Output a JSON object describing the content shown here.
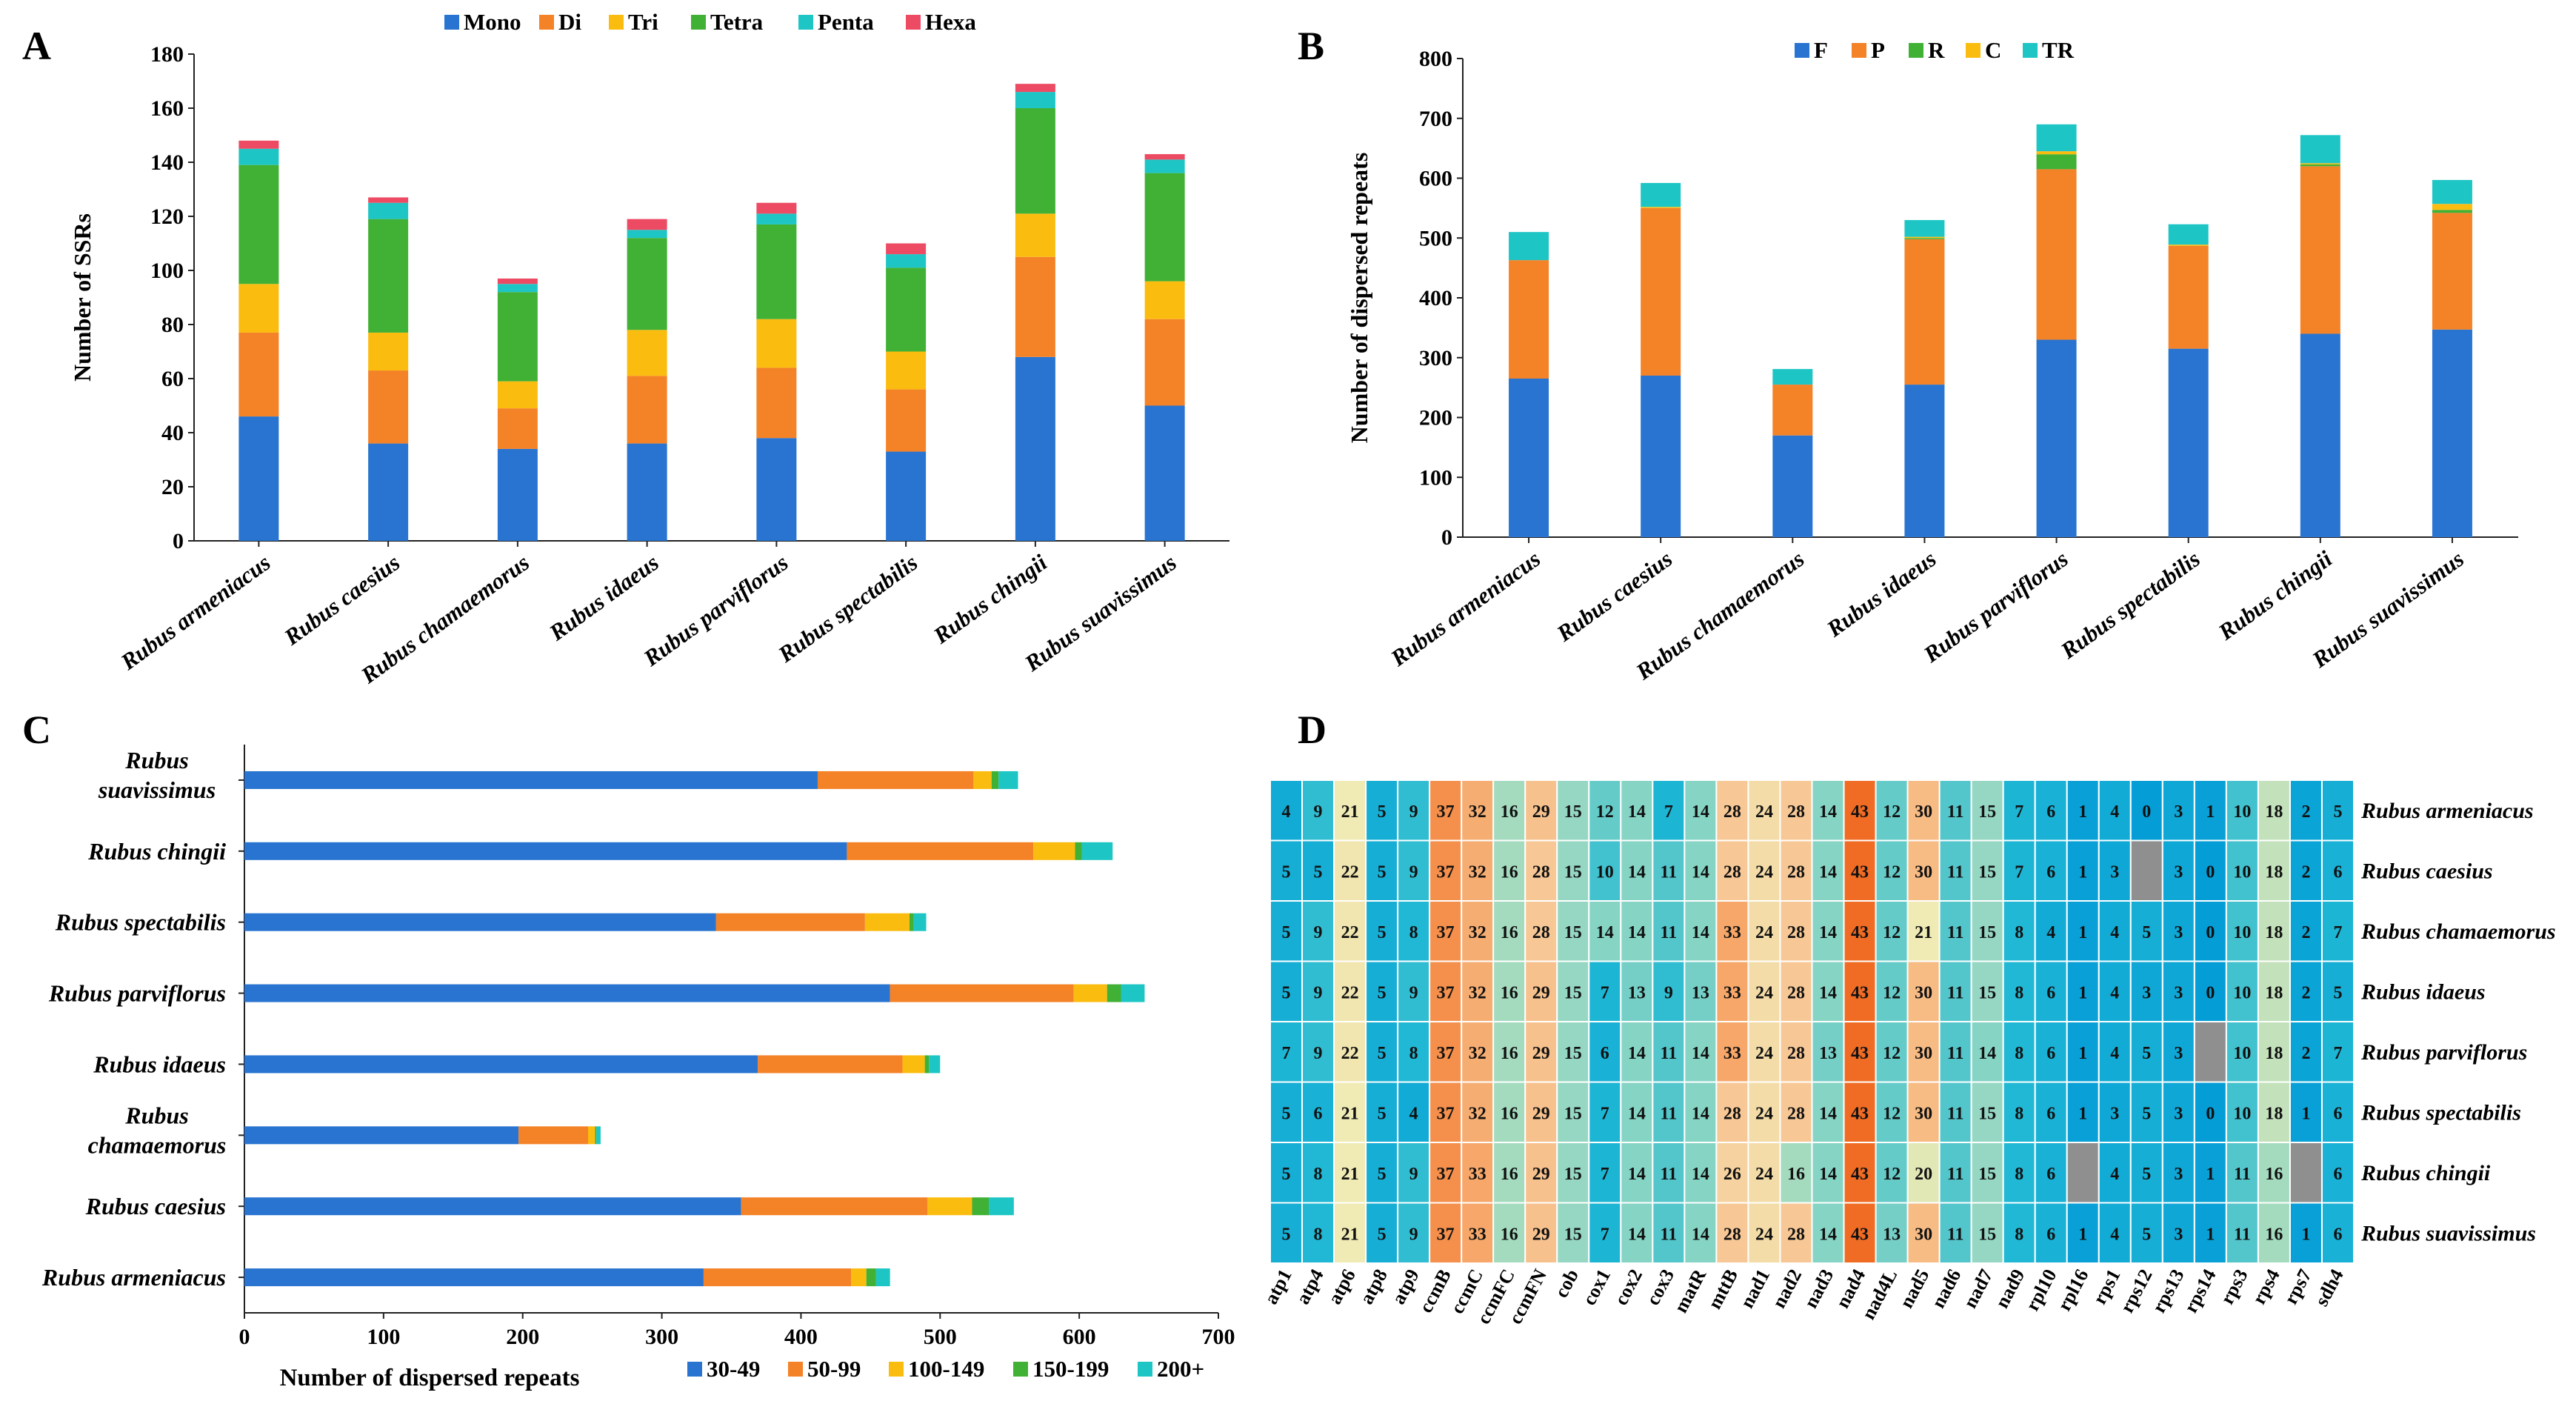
{
  "panel_labels": [
    "A",
    "B",
    "C",
    "D"
  ],
  "colors": {
    "Mono": "#2874d0",
    "Di": "#f48227",
    "Tri": "#fbbc10",
    "Tetra": "#41b135",
    "Penta": "#1ec5c5",
    "Hexa": "#ed4b63",
    "F": "#2874d0",
    "P": "#f48227",
    "R": "#41b135",
    "C": "#fbbc10",
    "TR": "#1ec5c5",
    "30-49": "#2874d0",
    "50-99": "#f48227",
    "100-149": "#fbbc10",
    "150-199": "#41b135",
    "200+": "#1ec5c5",
    "missing": "#8f8f8f"
  },
  "chart_data": [
    {
      "panel": "A",
      "type": "bar",
      "stacked": true,
      "orientation": "vertical",
      "ylabel": "Number of SSRs",
      "ylim": [
        0,
        180
      ],
      "yticks": [
        0,
        20,
        40,
        60,
        80,
        100,
        120,
        140,
        160,
        180
      ],
      "legend_position": "top",
      "categories": [
        "Rubus armeniacus",
        "Rubus caesius",
        "Rubus chamaemorus",
        "Rubus idaeus",
        "Rubus parviflorus",
        "Rubus spectabilis",
        "Rubus chingii",
        "Rubus  suavissimus"
      ],
      "series": [
        {
          "name": "Mono",
          "values": [
            46,
            36,
            34,
            36,
            38,
            33,
            68,
            50
          ]
        },
        {
          "name": "Di",
          "values": [
            31,
            27,
            15,
            25,
            26,
            23,
            37,
            32
          ]
        },
        {
          "name": "Tri",
          "values": [
            18,
            14,
            10,
            17,
            18,
            14,
            16,
            14
          ]
        },
        {
          "name": "Tetra",
          "values": [
            44,
            42,
            33,
            34,
            35,
            31,
            39,
            40
          ]
        },
        {
          "name": "Penta",
          "values": [
            6,
            6,
            3,
            3,
            4,
            5,
            6,
            5
          ]
        },
        {
          "name": "Hexa",
          "values": [
            3,
            2,
            2,
            4,
            4,
            4,
            3,
            2
          ]
        }
      ]
    },
    {
      "panel": "B",
      "type": "bar",
      "stacked": true,
      "orientation": "vertical",
      "ylabel": "Number of dispersed repeats",
      "ylim": [
        0,
        800
      ],
      "yticks": [
        0,
        100,
        200,
        300,
        400,
        500,
        600,
        700,
        800
      ],
      "legend_position": "top",
      "categories": [
        "Rubus armeniacus",
        "Rubus caesius",
        "Rubus chamaemorus",
        "Rubus idaeus",
        "Rubus parviflorus",
        "Rubus spectabilis",
        "Rubus chingii",
        "Rubus  suavissimus"
      ],
      "series": [
        {
          "name": "F",
          "values": [
            265,
            270,
            170,
            255,
            330,
            315,
            340,
            347
          ]
        },
        {
          "name": "P",
          "values": [
            198,
            280,
            85,
            243,
            285,
            172,
            280,
            195
          ]
        },
        {
          "name": "R",
          "values": [
            0,
            0,
            0,
            2,
            25,
            0,
            3,
            5
          ]
        },
        {
          "name": "C",
          "values": [
            0,
            2,
            0,
            2,
            5,
            2,
            2,
            10
          ]
        },
        {
          "name": "TR",
          "values": [
            47,
            40,
            26,
            28,
            45,
            34,
            47,
            40
          ]
        }
      ]
    },
    {
      "panel": "C",
      "type": "bar",
      "stacked": true,
      "orientation": "horizontal",
      "xlabel": "Number of dispersed repeats",
      "xlim": [
        0,
        700
      ],
      "xticks": [
        0,
        100,
        200,
        300,
        400,
        500,
        600,
        700
      ],
      "legend_position": "bottom-right",
      "categories": [
        "Rubus armeniacus",
        "Rubus caesius",
        "Rubus chamaemorus",
        "Rubus idaeus",
        "Rubus parviflorus",
        "Rubus spectabilis",
        "Rubus chingii",
        "Rubus suavissimus"
      ],
      "category_lines": [
        [
          "Rubus armeniacus"
        ],
        [
          "Rubus caesius"
        ],
        [
          "Rubus",
          "chamaemorus"
        ],
        [
          "Rubus idaeus"
        ],
        [
          "Rubus parviflorus"
        ],
        [
          "Rubus spectabilis"
        ],
        [
          "Rubus chingii"
        ],
        [
          "Rubus",
          "suavissimus"
        ]
      ],
      "series": [
        {
          "name": "30-49",
          "values": [
            330,
            357,
            197,
            369,
            464,
            339,
            433,
            412
          ]
        },
        {
          "name": "50-99",
          "values": [
            106,
            134,
            50,
            104,
            132,
            107,
            134,
            112
          ]
        },
        {
          "name": "100-149",
          "values": [
            11,
            32,
            5,
            16,
            24,
            32,
            30,
            13
          ]
        },
        {
          "name": "150-199",
          "values": [
            7,
            12,
            1,
            3,
            10,
            3,
            5,
            5
          ]
        },
        {
          "name": "200+",
          "values": [
            10,
            18,
            3,
            8,
            17,
            9,
            22,
            14
          ]
        }
      ]
    },
    {
      "panel": "D",
      "type": "heatmap",
      "genes": [
        "atp1",
        "atp4",
        "atp6",
        "atp8",
        "atp9",
        "ccmB",
        "ccmC",
        "ccmFC",
        "ccmFN",
        "cob",
        "cox1",
        "cox2",
        "cox3",
        "matR",
        "mttB",
        "nad1",
        "nad2",
        "nad3",
        "nad4",
        "nad4L",
        "nad5",
        "nad6",
        "nad7",
        "nad9",
        "rpl10",
        "rpl16",
        "rps1",
        "rps12",
        "rps13",
        "rps14",
        "rps3",
        "rps4",
        "rps7",
        "sdh4"
      ],
      "species": [
        "Rubus armeniacus",
        "Rubus caesius",
        "Rubus chamaemorus",
        "Rubus idaeus",
        "Rubus parviflorus",
        "Rubus spectabilis",
        "Rubus chingii",
        "Rubus  suavissimus"
      ],
      "values": [
        [
          4,
          9,
          21,
          5,
          9,
          37,
          32,
          16,
          29,
          15,
          12,
          14,
          7,
          14,
          28,
          24,
          28,
          14,
          43,
          12,
          30,
          11,
          15,
          7,
          6,
          1,
          4,
          0,
          3,
          1,
          10,
          18,
          2,
          5
        ],
        [
          5,
          5,
          22,
          5,
          9,
          37,
          32,
          16,
          28,
          15,
          10,
          14,
          11,
          14,
          28,
          24,
          28,
          14,
          43,
          12,
          30,
          11,
          15,
          7,
          6,
          1,
          3,
          null,
          3,
          0,
          10,
          18,
          2,
          6
        ],
        [
          5,
          9,
          22,
          5,
          8,
          37,
          32,
          16,
          28,
          15,
          14,
          14,
          11,
          14,
          33,
          24,
          28,
          14,
          43,
          12,
          21,
          11,
          15,
          8,
          4,
          1,
          4,
          5,
          3,
          0,
          10,
          18,
          2,
          7
        ],
        [
          5,
          9,
          22,
          5,
          9,
          37,
          32,
          16,
          29,
          15,
          7,
          13,
          9,
          13,
          33,
          24,
          28,
          14,
          43,
          12,
          30,
          11,
          15,
          8,
          6,
          1,
          4,
          3,
          3,
          0,
          10,
          18,
          2,
          5
        ],
        [
          7,
          9,
          22,
          5,
          8,
          37,
          32,
          16,
          29,
          15,
          6,
          14,
          11,
          14,
          33,
          24,
          28,
          13,
          43,
          12,
          30,
          11,
          14,
          8,
          6,
          1,
          4,
          5,
          3,
          null,
          10,
          18,
          2,
          7
        ],
        [
          5,
          6,
          21,
          5,
          4,
          37,
          32,
          16,
          29,
          15,
          7,
          14,
          11,
          14,
          28,
          24,
          28,
          14,
          43,
          12,
          30,
          11,
          15,
          8,
          6,
          1,
          3,
          5,
          3,
          0,
          10,
          18,
          1,
          6
        ],
        [
          5,
          8,
          21,
          5,
          9,
          37,
          33,
          16,
          29,
          15,
          7,
          14,
          11,
          14,
          26,
          24,
          16,
          14,
          43,
          12,
          20,
          11,
          15,
          8,
          6,
          null,
          4,
          5,
          3,
          1,
          11,
          16,
          null,
          6
        ],
        [
          5,
          8,
          21,
          5,
          9,
          37,
          33,
          16,
          29,
          15,
          7,
          14,
          11,
          14,
          28,
          24,
          28,
          14,
          43,
          13,
          30,
          11,
          15,
          8,
          6,
          1,
          4,
          5,
          3,
          1,
          11,
          16,
          1,
          6
        ]
      ]
    }
  ]
}
